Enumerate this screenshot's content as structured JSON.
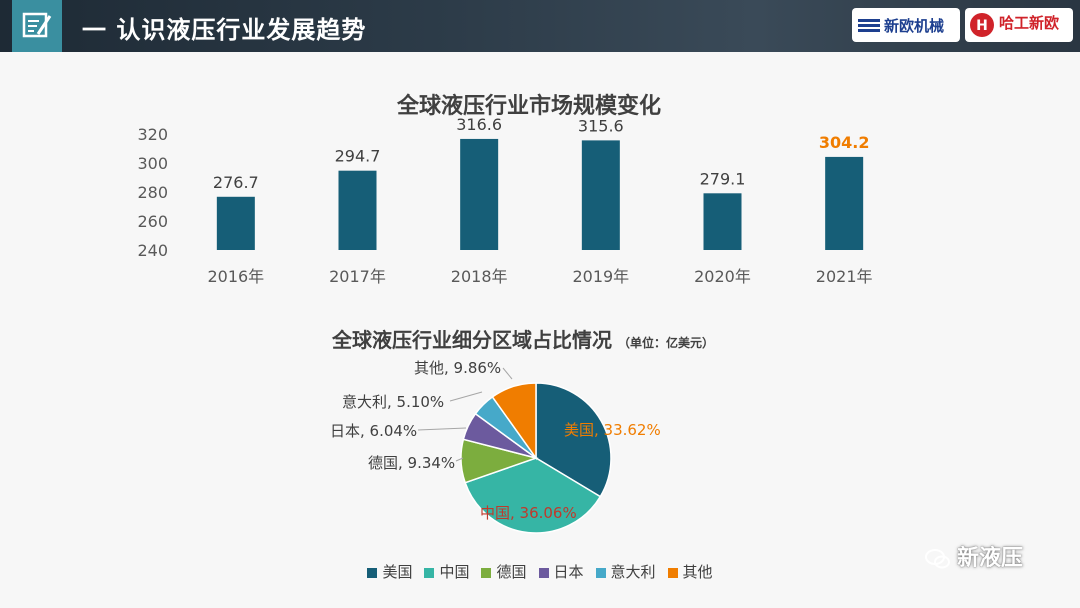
{
  "header": {
    "title": "一 认识液压行业发展趋势"
  },
  "logos": {
    "logo1_text": "新欧机械",
    "logo2_text": "哈工新欧",
    "logo2_mark": "H"
  },
  "watermark": "新液压",
  "colors": {
    "bar": "#165e77",
    "highlight": "#f07d00",
    "axis_text": "#595959"
  },
  "chart_data": [
    {
      "type": "bar",
      "title": "全球液压行业市场规模变化",
      "categories": [
        "2016年",
        "2017年",
        "2018年",
        "2019年",
        "2020年",
        "2021年"
      ],
      "values": [
        276.7,
        294.7,
        316.6,
        315.6,
        279.1,
        304.2
      ],
      "value_labels": [
        "276.7",
        "294.7",
        "316.6",
        "315.6",
        "279.1",
        "304.2"
      ],
      "highlight_index": 5,
      "ylim": [
        240,
        320
      ],
      "yticks": [
        "240",
        "260",
        "280",
        "300",
        "320"
      ],
      "grid": false
    },
    {
      "type": "pie",
      "title": "全球液压行业细分区域占比情况",
      "unit": "（单位：亿美元）",
      "slices": [
        {
          "name": "美国",
          "value": 33.62,
          "label": "美国, 33.62%",
          "color": "#165e77"
        },
        {
          "name": "中国",
          "value": 36.06,
          "label": "中国, 36.06%",
          "color": "#36b5a5"
        },
        {
          "name": "德国",
          "value": 9.34,
          "label": "德国, 9.34%",
          "color": "#7cad3e"
        },
        {
          "name": "日本",
          "value": 6.04,
          "label": "日本, 6.04%",
          "color": "#6c5a9e"
        },
        {
          "name": "意大利",
          "value": 5.1,
          "label": "意大利, 5.10%",
          "color": "#46a9c9"
        },
        {
          "name": "其他",
          "value": 9.86,
          "label": "其他, 9.86%",
          "color": "#f07d00"
        }
      ],
      "legend": [
        "美国",
        "中国",
        "德国",
        "日本",
        "意大利",
        "其他"
      ],
      "legend_position": "bottom"
    }
  ]
}
